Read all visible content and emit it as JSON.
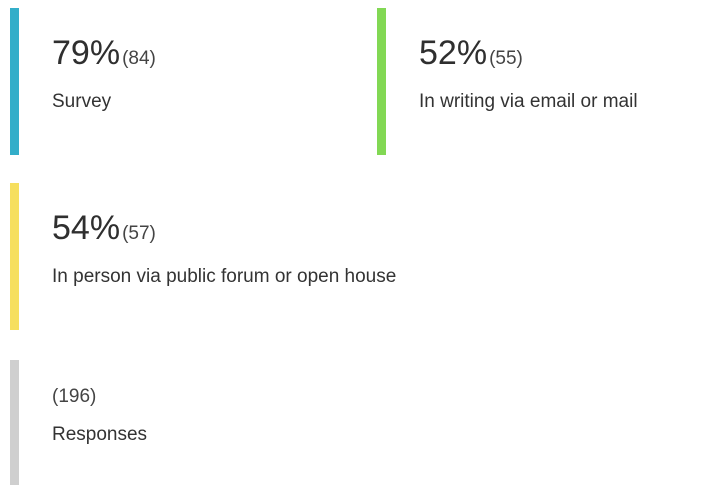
{
  "cards": [
    {
      "percent": "79%",
      "count": "(84)",
      "label": "Survey",
      "color": "#33aec9"
    },
    {
      "percent": "52%",
      "count": "(55)",
      "label": "In writing via email or mail",
      "color": "#82d854"
    },
    {
      "percent": "54%",
      "count": "(57)",
      "label": "In person via public forum or open house",
      "color": "#f6df5e"
    },
    {
      "count": "(196)",
      "label": "Responses",
      "color": "#cfcfcf"
    }
  ]
}
